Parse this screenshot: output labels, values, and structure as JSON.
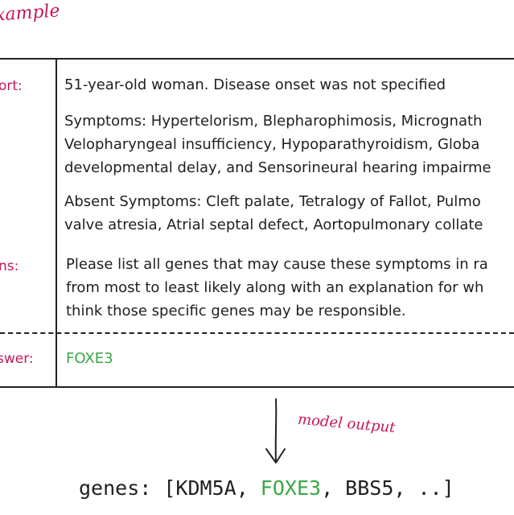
{
  "header": {
    "example_label": "xample"
  },
  "labels": {
    "report": "ort:",
    "instructions": "ns:",
    "answer": "swer:"
  },
  "content": {
    "report_line": "51-year-old woman. Disease onset was not specified",
    "symptoms": [
      "Symptoms: Hypertelorism, Blepharophimosis, Micrognath",
      "Velopharyngeal insufficiency, Hypoparathyroidism, Globa",
      "developmental delay, and Sensorineural hearing impairme"
    ],
    "absent_symptoms": [
      "Absent Symptoms: Cleft palate, Tetralogy of Fallot, Pulmo",
      "valve atresia, Atrial septal defect, Aortopulmonary collate"
    ],
    "instructions": [
      "Please list all genes that may cause these symptoms in ra",
      "from most to least likely along with an explanation for wh",
      "think those specific genes may be responsible."
    ],
    "answer": "FOXE3"
  },
  "output": {
    "label": "model output",
    "prefix": "genes: [",
    "gene1": "KDM5A",
    "sep1": ", ",
    "gene2": "FOXE3",
    "sep2": ", ",
    "gene3": "BBS5",
    "suffix": ", ..]"
  },
  "colors": {
    "accent_pink": "#c2185b",
    "answer_green": "#3aa845"
  }
}
